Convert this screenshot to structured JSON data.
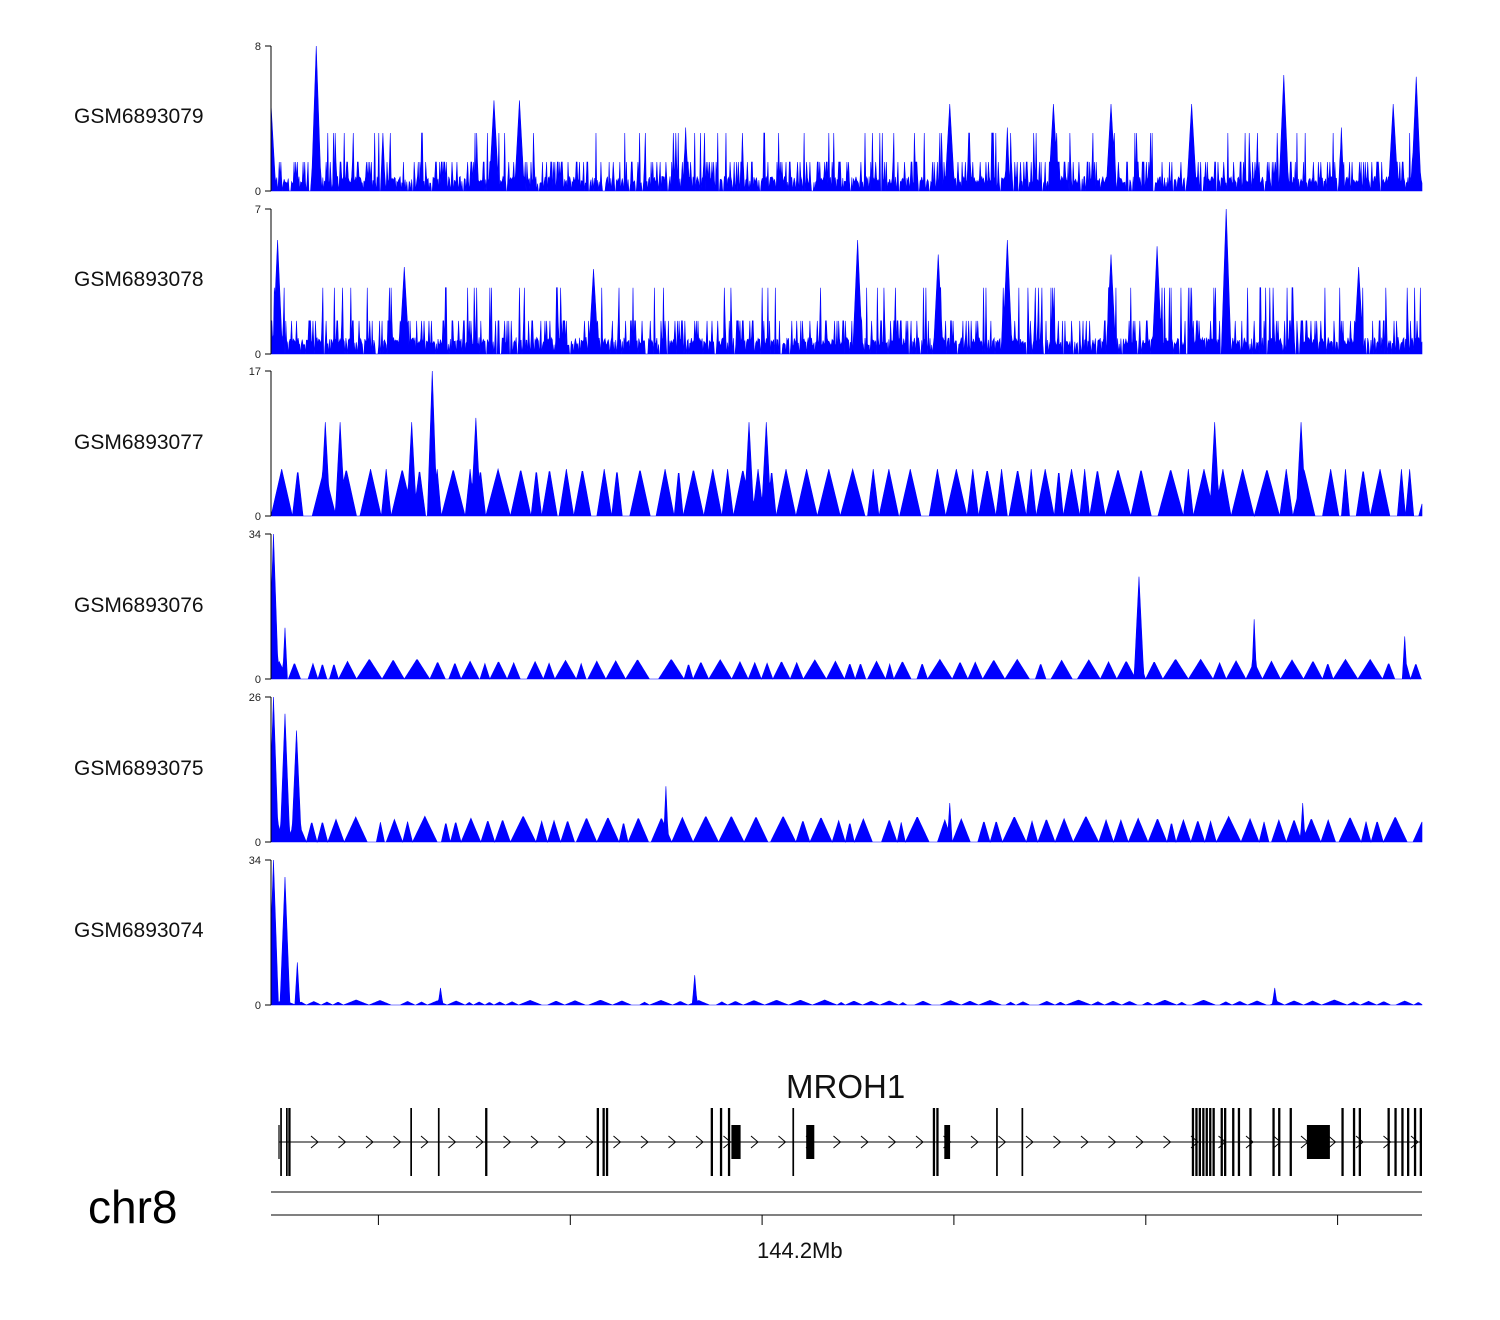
{
  "chart_data": {
    "type": "area",
    "title": "",
    "chromosome": "chr8",
    "gene": "MROH1",
    "axis_tick_label": "144.2Mb",
    "fill_color": "#0000ff",
    "region_mb": [
      144.136,
      144.286
    ],
    "labeled_tick_mb": 144.2,
    "tracks": [
      {
        "name": "GSM6893079",
        "ymin": 0,
        "ymax": 8,
        "ytick_labels": [
          "8",
          "0"
        ],
        "baseline": 0.7,
        "peaks": [
          [
            0.0,
            4.8
          ],
          [
            0.039,
            8
          ],
          [
            0.097,
            3.2
          ],
          [
            0.194,
            5
          ],
          [
            0.216,
            5
          ],
          [
            0.36,
            3.5
          ],
          [
            0.59,
            4.8
          ],
          [
            0.64,
            3.5
          ],
          [
            0.68,
            4.8
          ],
          [
            0.73,
            4.8
          ],
          [
            0.8,
            4.8
          ],
          [
            0.88,
            6.4
          ],
          [
            0.93,
            3.5
          ],
          [
            0.975,
            4.8
          ],
          [
            0.995,
            6.3
          ]
        ]
      },
      {
        "name": "GSM6893078",
        "ymin": 0,
        "ymax": 7,
        "ytick_labels": [
          "7",
          "0"
        ],
        "baseline": 0.7,
        "peaks": [
          [
            0.006,
            5.5
          ],
          [
            0.116,
            4.2
          ],
          [
            0.28,
            4.1
          ],
          [
            0.51,
            5.5
          ],
          [
            0.58,
            4.8
          ],
          [
            0.64,
            5.5
          ],
          [
            0.73,
            4.8
          ],
          [
            0.77,
            5.2
          ],
          [
            0.83,
            7
          ],
          [
            0.945,
            4.2
          ]
        ]
      },
      {
        "name": "GSM6893077",
        "ymin": 0,
        "ymax": 17,
        "ytick_labels": [
          "17",
          "0"
        ],
        "baseline": 0,
        "peaks": [
          [
            0.047,
            11
          ],
          [
            0.06,
            11
          ],
          [
            0.122,
            11
          ],
          [
            0.14,
            17
          ],
          [
            0.178,
            11.5
          ],
          [
            0.415,
            11
          ],
          [
            0.43,
            11
          ],
          [
            0.82,
            11
          ],
          [
            0.895,
            11
          ]
        ]
      },
      {
        "name": "GSM6893076",
        "ymin": 0,
        "ymax": 34,
        "ytick_labels": [
          "34",
          "0"
        ],
        "baseline": 0,
        "peaks": [
          [
            0.002,
            34
          ],
          [
            0.012,
            12
          ],
          [
            0.754,
            24
          ],
          [
            0.854,
            14
          ],
          [
            0.985,
            10
          ]
        ]
      },
      {
        "name": "GSM6893075",
        "ymin": 0,
        "ymax": 26,
        "ytick_labels": [
          "26",
          "0"
        ],
        "baseline": 0,
        "peaks": [
          [
            0.002,
            26
          ],
          [
            0.012,
            23
          ],
          [
            0.022,
            20
          ],
          [
            0.343,
            10
          ],
          [
            0.59,
            7
          ],
          [
            0.896,
            7
          ]
        ]
      },
      {
        "name": "GSM6893074",
        "ymin": 0,
        "ymax": 34,
        "ytick_labels": [
          "34",
          "0"
        ],
        "baseline": 0,
        "peaks": [
          [
            0.002,
            34
          ],
          [
            0.012,
            30
          ],
          [
            0.023,
            10
          ],
          [
            0.147,
            4
          ],
          [
            0.368,
            7
          ],
          [
            0.872,
            4
          ]
        ]
      }
    ],
    "gene_model": {
      "strand": "+",
      "exons": [
        [
          0.008,
          0.0015
        ],
        [
          0.013,
          0.0015
        ],
        [
          0.015,
          0.002
        ],
        [
          0.121,
          0.0015
        ],
        [
          0.145,
          0.0015
        ],
        [
          0.186,
          0.002
        ],
        [
          0.283,
          0.002
        ],
        [
          0.288,
          0.002
        ],
        [
          0.291,
          0.002
        ],
        [
          0.382,
          0.002
        ],
        [
          0.39,
          0.002
        ],
        [
          0.397,
          0.002
        ],
        [
          0.4,
          0.008
        ],
        [
          0.453,
          0.0015
        ],
        [
          0.465,
          0.007
        ],
        [
          0.575,
          0.002
        ],
        [
          0.578,
          0.002
        ],
        [
          0.585,
          0.005
        ],
        [
          0.63,
          0.0015
        ],
        [
          0.652,
          0.0015
        ],
        [
          0.8,
          0.002
        ],
        [
          0.803,
          0.002
        ],
        [
          0.806,
          0.002
        ],
        [
          0.809,
          0.002
        ],
        [
          0.812,
          0.002
        ],
        [
          0.815,
          0.002
        ],
        [
          0.818,
          0.002
        ],
        [
          0.825,
          0.002
        ],
        [
          0.828,
          0.002
        ],
        [
          0.835,
          0.002
        ],
        [
          0.84,
          0.002
        ],
        [
          0.85,
          0.002
        ],
        [
          0.87,
          0.002
        ],
        [
          0.875,
          0.002
        ],
        [
          0.885,
          0.002
        ],
        [
          0.9,
          0.02
        ],
        [
          0.93,
          0.002
        ],
        [
          0.94,
          0.002
        ],
        [
          0.945,
          0.002
        ],
        [
          0.97,
          0.002
        ],
        [
          0.976,
          0.002
        ],
        [
          0.982,
          0.002
        ],
        [
          0.987,
          0.002
        ],
        [
          0.993,
          0.002
        ],
        [
          0.998,
          0.002
        ]
      ]
    }
  }
}
